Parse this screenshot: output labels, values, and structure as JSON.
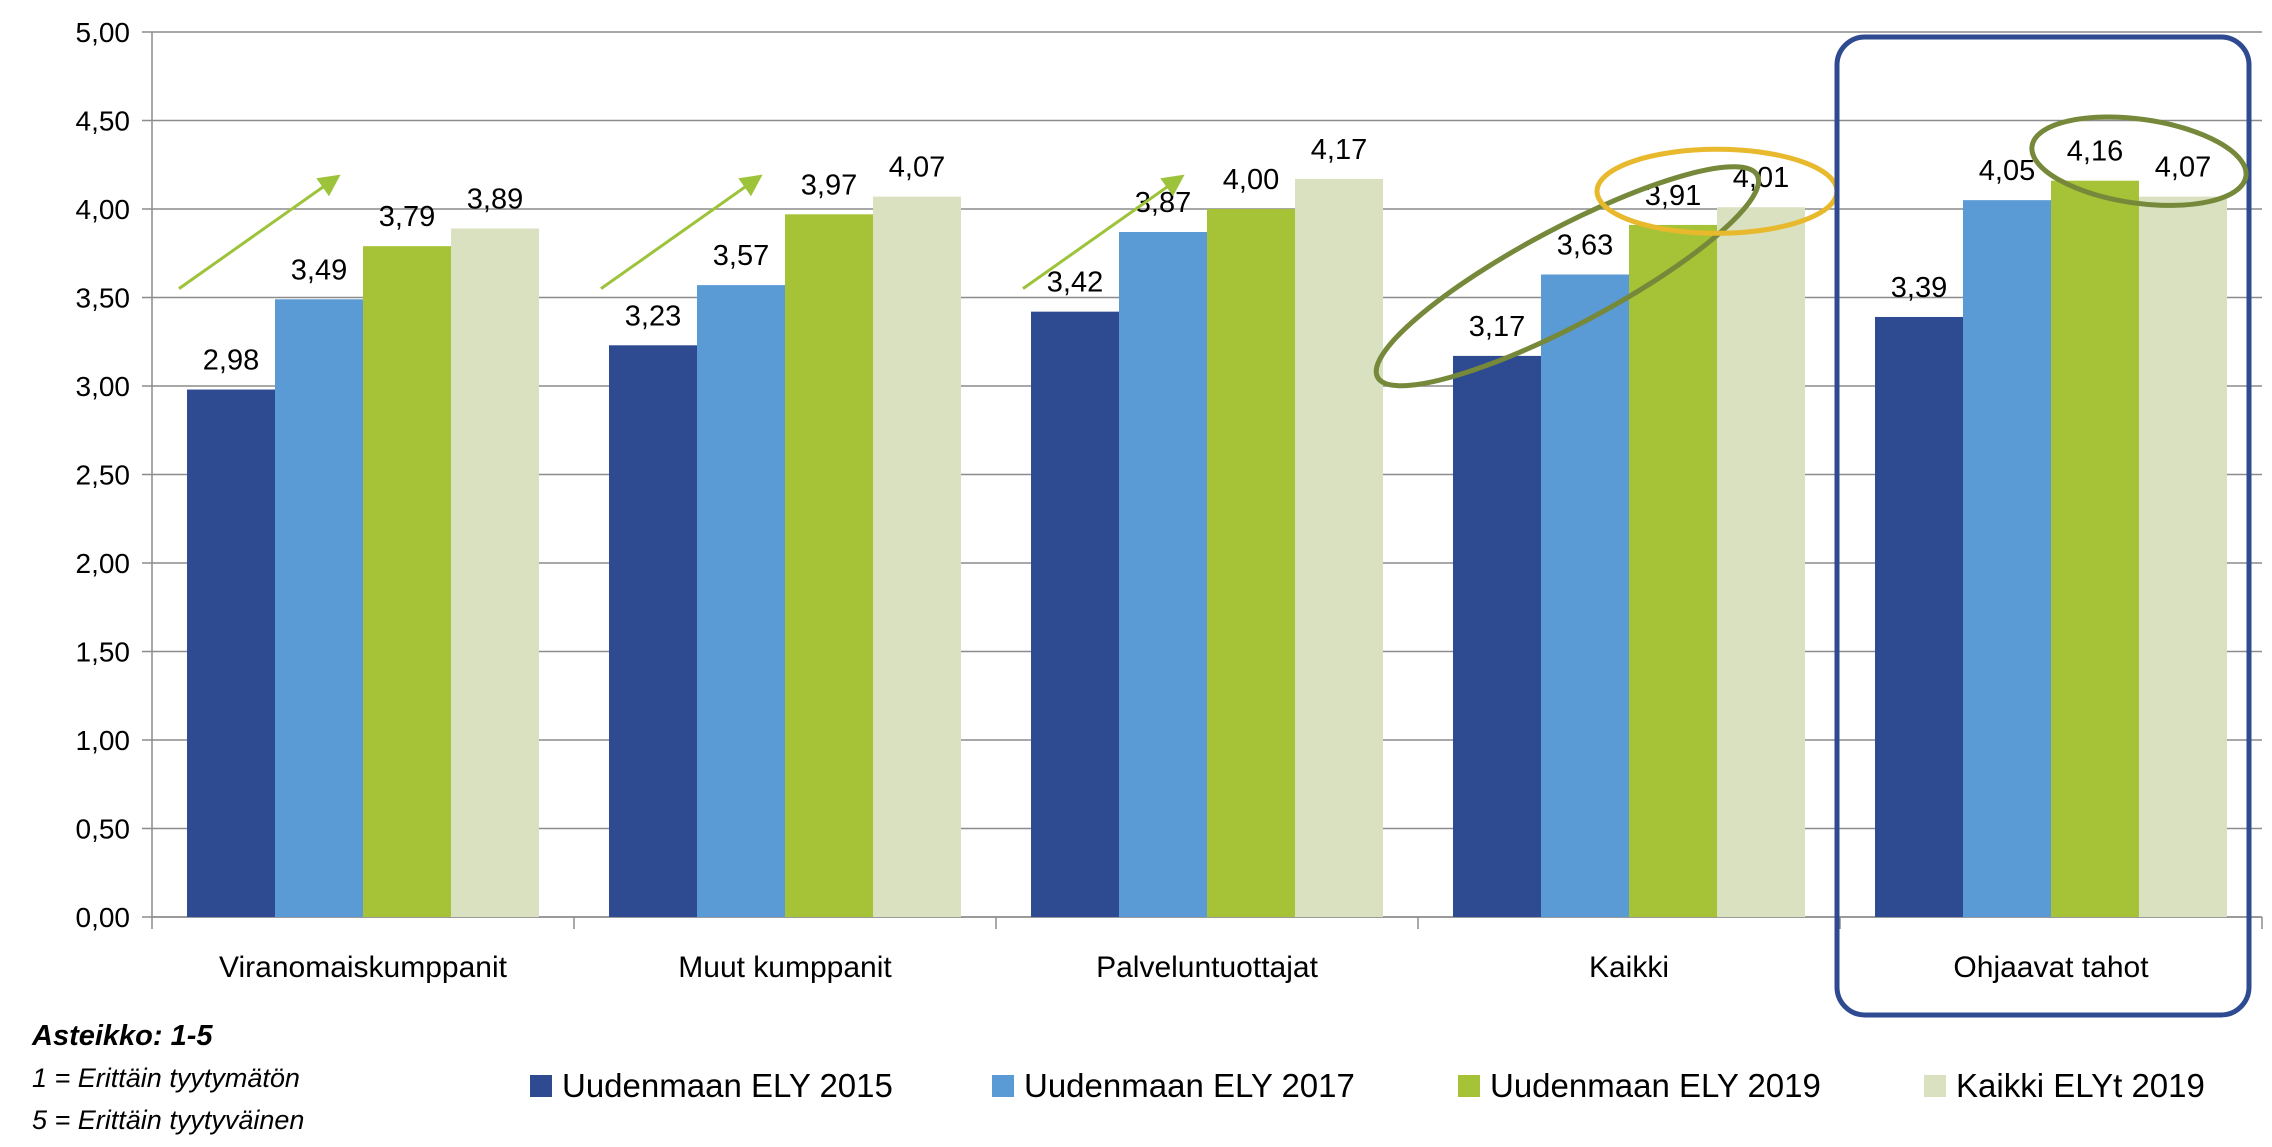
{
  "chart_data": {
    "type": "bar",
    "categories": [
      "Viranomaiskumppanit",
      "Muut kumppanit",
      "Palveluntuottajat",
      "Kaikki",
      "Ohjaavat tahot"
    ],
    "series": [
      {
        "name": "Uudenmaan ELY 2015",
        "color": "#2E4A91",
        "values": [
          2.98,
          3.23,
          3.42,
          3.17,
          3.39
        ],
        "labels": [
          "2,98",
          "3,23",
          "3,42",
          "3,17",
          "3,39"
        ]
      },
      {
        "name": "Uudenmaan ELY 2017",
        "color": "#5B9BD5",
        "values": [
          3.49,
          3.57,
          3.87,
          3.63,
          4.05
        ],
        "labels": [
          "3,49",
          "3,57",
          "3,87",
          "3,63",
          "4,05"
        ]
      },
      {
        "name": "Uudenmaan ELY 2019",
        "color": "#A6C236",
        "values": [
          3.79,
          3.97,
          4.0,
          3.91,
          4.16
        ],
        "labels": [
          "3,79",
          "3,97",
          "4,00",
          "3,91",
          "4,16"
        ]
      },
      {
        "name": "Kaikki ELYt 2019",
        "color": "#D9E1C1",
        "values": [
          3.89,
          4.07,
          4.17,
          4.01,
          4.07
        ],
        "labels": [
          "3,89",
          "4,07",
          "4,17",
          "4,01",
          "4,07"
        ]
      }
    ],
    "ylim": [
      0,
      5
    ],
    "yticks": [
      "0,00",
      "0,50",
      "1,00",
      "1,50",
      "2,00",
      "2,50",
      "3,00",
      "3,50",
      "4,00",
      "4,50",
      "5,00"
    ],
    "grid": true,
    "legend_position": "bottom",
    "annotations": {
      "trend_arrows_categories": [
        "Viranomaiskumppanit",
        "Muut kumppanit",
        "Palveluntuottajat"
      ],
      "highlight_box_category": "Ohjaavat tahot",
      "arrow_color": "#9DC33B",
      "ellipse_color_olive": "#76883A",
      "ellipse_color_yellow": "#E8B92D",
      "highlight_box_color": "#2E4A91"
    }
  },
  "notes": {
    "title": "Asteikko: 1-5",
    "line1": "1 = Erittäin tyytymätön",
    "line2": "5 = Erittäin tyytyväinen"
  }
}
